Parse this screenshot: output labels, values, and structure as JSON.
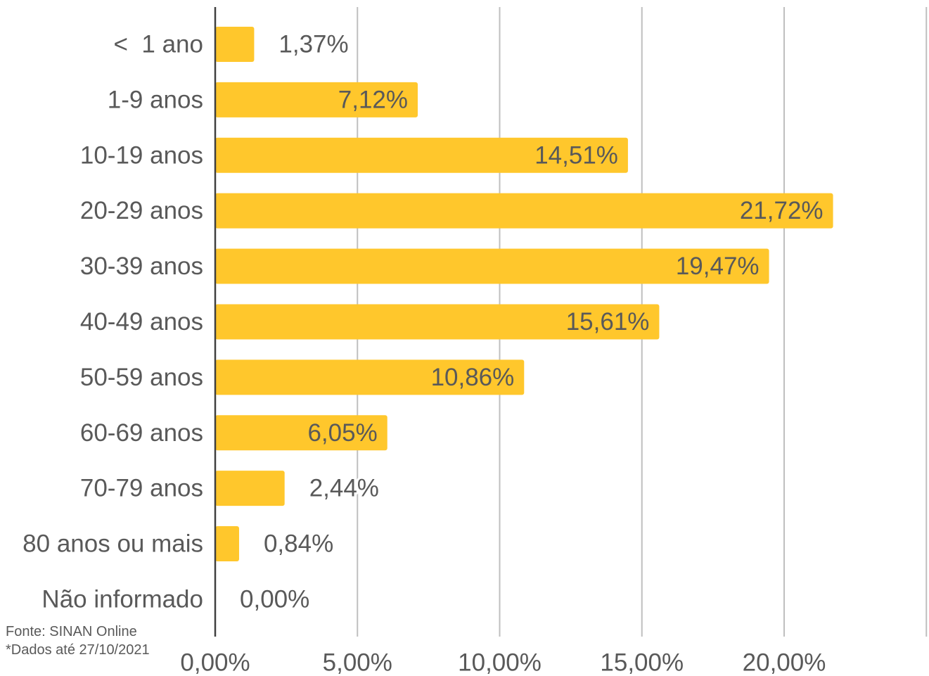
{
  "chart_data": {
    "type": "bar",
    "orientation": "horizontal",
    "categories": [
      "<  1 ano",
      "1-9 anos",
      "10-19 anos",
      "20-29 anos",
      "30-39 anos",
      "40-49 anos",
      "50-59 anos",
      "60-69 anos",
      "70-79 anos",
      "80 anos ou mais",
      "Não informado"
    ],
    "values": [
      1.37,
      7.12,
      14.51,
      21.72,
      19.47,
      15.61,
      10.86,
      6.05,
      2.44,
      0.84,
      0.0
    ],
    "data_labels": [
      "1,37%",
      "7,12%",
      "14,51%",
      "21,72%",
      "19,47%",
      "15,61%",
      "10,86%",
      "6,05%",
      "2,44%",
      "0,84%",
      "0,00%"
    ],
    "xlim": [
      0,
      25
    ],
    "x_ticks": [
      0,
      5,
      10,
      15,
      20
    ],
    "x_tick_labels": [
      "0,00%",
      "5,00%",
      "10,00%",
      "15,00%",
      "20,00%"
    ],
    "gridlines": true,
    "legend": false,
    "bar_color": "#FFC72C",
    "grid_color": "#BFBFBF",
    "text_color": "#595959",
    "title": "",
    "xlabel": "",
    "ylabel": ""
  },
  "source": {
    "line1": "Fonte: SINAN Online",
    "line2": "*Dados até 27/10/2021"
  }
}
